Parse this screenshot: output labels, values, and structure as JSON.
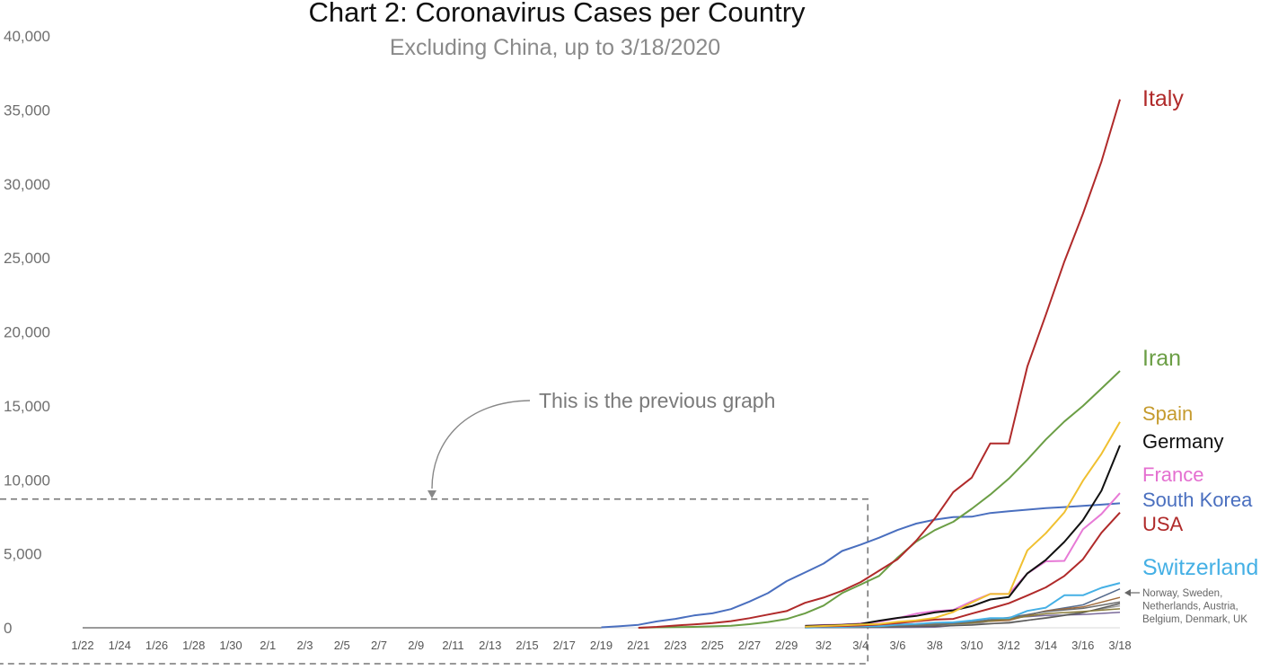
{
  "chart_data": {
    "type": "line",
    "title": "Chart 2: Coronavirus Cases per Country",
    "subtitle": "Excluding China, up to 3/18/2020",
    "xlabel": "",
    "ylabel": "",
    "ylim": [
      0,
      40000
    ],
    "y_ticks": [
      0,
      5000,
      10000,
      15000,
      20000,
      25000,
      30000,
      35000,
      40000
    ],
    "y_tick_labels": [
      "0",
      "5,000",
      "10,000",
      "15,000",
      "20,000",
      "25,000",
      "30,000",
      "35,000",
      "40,000"
    ],
    "x_tick_labels": [
      "1/22",
      "1/24",
      "1/26",
      "1/28",
      "1/30",
      "2/1",
      "2/3",
      "2/5",
      "2/7",
      "2/9",
      "2/11",
      "2/13",
      "2/15",
      "2/17",
      "2/19",
      "2/21",
      "2/23",
      "2/25",
      "2/27",
      "2/29",
      "3/2",
      "3/4",
      "3/6",
      "3/8",
      "3/10",
      "3/12",
      "3/14",
      "3/16",
      "3/18"
    ],
    "grid": false,
    "legend": "direct labels at line ends (right)",
    "series": [
      {
        "name": "Italy",
        "color": "#b02a2a",
        "label_size": "big",
        "points": [
          [
            "2/21",
            0
          ],
          [
            "2/22",
            60
          ],
          [
            "2/23",
            150
          ],
          [
            "2/24",
            230
          ],
          [
            "2/25",
            320
          ],
          [
            "2/26",
            450
          ],
          [
            "2/27",
            650
          ],
          [
            "2/28",
            890
          ],
          [
            "2/29",
            1130
          ],
          [
            "3/1",
            1690
          ],
          [
            "3/2",
            2040
          ],
          [
            "3/3",
            2500
          ],
          [
            "3/4",
            3090
          ],
          [
            "3/5",
            3860
          ],
          [
            "3/6",
            4640
          ],
          [
            "3/7",
            5880
          ],
          [
            "3/8",
            7380
          ],
          [
            "3/9",
            9170
          ],
          [
            "3/10",
            10150
          ],
          [
            "3/11",
            12460
          ],
          [
            "3/12",
            12460
          ],
          [
            "3/13",
            17660
          ],
          [
            "3/14",
            21160
          ],
          [
            "3/15",
            24750
          ],
          [
            "3/16",
            27980
          ],
          [
            "3/17",
            31510
          ],
          [
            "3/18",
            35710
          ]
        ]
      },
      {
        "name": "Iran",
        "color": "#6b9e45",
        "label_size": "big",
        "points": [
          [
            "2/21",
            0
          ],
          [
            "2/22",
            30
          ],
          [
            "2/23",
            40
          ],
          [
            "2/24",
            60
          ],
          [
            "2/25",
            100
          ],
          [
            "2/26",
            140
          ],
          [
            "2/27",
            240
          ],
          [
            "2/28",
            390
          ],
          [
            "2/29",
            590
          ],
          [
            "3/1",
            980
          ],
          [
            "3/2",
            1500
          ],
          [
            "3/3",
            2340
          ],
          [
            "3/4",
            2920
          ],
          [
            "3/5",
            3510
          ],
          [
            "3/6",
            4750
          ],
          [
            "3/7",
            5820
          ],
          [
            "3/8",
            6600
          ],
          [
            "3/9",
            7160
          ],
          [
            "3/10",
            8040
          ],
          [
            "3/11",
            9000
          ],
          [
            "3/12",
            10080
          ],
          [
            "3/13",
            11360
          ],
          [
            "3/14",
            12730
          ],
          [
            "3/15",
            13940
          ],
          [
            "3/16",
            14990
          ],
          [
            "3/17",
            16170
          ],
          [
            "3/18",
            17360
          ]
        ]
      },
      {
        "name": "Spain",
        "color": "#f0c030",
        "label_color": "#c59b2e",
        "label_size": "mid",
        "points": [
          [
            "3/1",
            80
          ],
          [
            "3/2",
            120
          ],
          [
            "3/3",
            165
          ],
          [
            "3/4",
            220
          ],
          [
            "3/5",
            260
          ],
          [
            "3/6",
            400
          ],
          [
            "3/7",
            500
          ],
          [
            "3/8",
            670
          ],
          [
            "3/9",
            1070
          ],
          [
            "3/10",
            1700
          ],
          [
            "3/11",
            2280
          ],
          [
            "3/12",
            2280
          ],
          [
            "3/13",
            5230
          ],
          [
            "3/14",
            6390
          ],
          [
            "3/15",
            7800
          ],
          [
            "3/16",
            9940
          ],
          [
            "3/17",
            11750
          ],
          [
            "3/18",
            13910
          ]
        ]
      },
      {
        "name": "Germany",
        "color": "#111111",
        "label_size": "mid",
        "points": [
          [
            "3/1",
            130
          ],
          [
            "3/2",
            160
          ],
          [
            "3/3",
            200
          ],
          [
            "3/4",
            260
          ],
          [
            "3/5",
            480
          ],
          [
            "3/6",
            670
          ],
          [
            "3/7",
            800
          ],
          [
            "3/8",
            1040
          ],
          [
            "3/9",
            1180
          ],
          [
            "3/10",
            1460
          ],
          [
            "3/11",
            1910
          ],
          [
            "3/12",
            2080
          ],
          [
            "3/13",
            3680
          ],
          [
            "3/14",
            4590
          ],
          [
            "3/15",
            5800
          ],
          [
            "3/16",
            7270
          ],
          [
            "3/17",
            9260
          ],
          [
            "3/18",
            12330
          ]
        ]
      },
      {
        "name": "France",
        "color": "#e77ad6",
        "label_color": "#e46fd0",
        "label_size": "mid",
        "points": [
          [
            "3/1",
            130
          ],
          [
            "3/2",
            190
          ],
          [
            "3/3",
            210
          ],
          [
            "3/4",
            290
          ],
          [
            "3/5",
            420
          ],
          [
            "3/6",
            650
          ],
          [
            "3/7",
            950
          ],
          [
            "3/8",
            1130
          ],
          [
            "3/9",
            1210
          ],
          [
            "3/10",
            1790
          ],
          [
            "3/11",
            2290
          ],
          [
            "3/12",
            2290
          ],
          [
            "3/13",
            3670
          ],
          [
            "3/14",
            4490
          ],
          [
            "3/15",
            4520
          ],
          [
            "3/16",
            6650
          ],
          [
            "3/17",
            7690
          ],
          [
            "3/18",
            9100
          ]
        ]
      },
      {
        "name": "South Korea",
        "color": "#4a6fbf",
        "label_size": "mid",
        "points": [
          [
            "2/19",
            30
          ],
          [
            "2/20",
            110
          ],
          [
            "2/21",
            200
          ],
          [
            "2/22",
            430
          ],
          [
            "2/23",
            600
          ],
          [
            "2/24",
            830
          ],
          [
            "2/25",
            980
          ],
          [
            "2/26",
            1260
          ],
          [
            "2/27",
            1770
          ],
          [
            "2/28",
            2340
          ],
          [
            "2/29",
            3150
          ],
          [
            "3/1",
            3740
          ],
          [
            "3/2",
            4340
          ],
          [
            "3/3",
            5190
          ],
          [
            "3/4",
            5620
          ],
          [
            "3/5",
            6090
          ],
          [
            "3/6",
            6610
          ],
          [
            "3/7",
            7040
          ],
          [
            "3/8",
            7310
          ],
          [
            "3/9",
            7480
          ],
          [
            "3/10",
            7510
          ],
          [
            "3/11",
            7760
          ],
          [
            "3/12",
            7870
          ],
          [
            "3/13",
            7980
          ],
          [
            "3/14",
            8090
          ],
          [
            "3/15",
            8160
          ],
          [
            "3/16",
            8240
          ],
          [
            "3/17",
            8320
          ],
          [
            "3/18",
            8410
          ]
        ]
      },
      {
        "name": "USA",
        "color": "#b02a2a",
        "label_size": "mid",
        "points": [
          [
            "3/1",
            80
          ],
          [
            "3/2",
            100
          ],
          [
            "3/3",
            120
          ],
          [
            "3/4",
            160
          ],
          [
            "3/5",
            220
          ],
          [
            "3/6",
            320
          ],
          [
            "3/7",
            440
          ],
          [
            "3/8",
            550
          ],
          [
            "3/9",
            600
          ],
          [
            "3/10",
            960
          ],
          [
            "3/11",
            1300
          ],
          [
            "3/12",
            1660
          ],
          [
            "3/13",
            2180
          ],
          [
            "3/14",
            2730
          ],
          [
            "3/15",
            3500
          ],
          [
            "3/16",
            4630
          ],
          [
            "3/17",
            6420
          ],
          [
            "3/18",
            7790
          ]
        ]
      },
      {
        "name": "Switzerland",
        "color": "#45b0e5",
        "label_size": "big",
        "points": [
          [
            "3/1",
            20
          ],
          [
            "3/2",
            40
          ],
          [
            "3/3",
            60
          ],
          [
            "3/4",
            90
          ],
          [
            "3/5",
            110
          ],
          [
            "3/6",
            210
          ],
          [
            "3/7",
            260
          ],
          [
            "3/8",
            340
          ],
          [
            "3/9",
            370
          ],
          [
            "3/10",
            490
          ],
          [
            "3/11",
            650
          ],
          [
            "3/12",
            650
          ],
          [
            "3/13",
            1140
          ],
          [
            "3/14",
            1360
          ],
          [
            "3/15",
            2200
          ],
          [
            "3/16",
            2200
          ],
          [
            "3/17",
            2700
          ],
          [
            "3/18",
            3030
          ]
        ]
      },
      {
        "name": "Norway",
        "color": "#6d6d6d",
        "label_size": "none",
        "points": [
          [
            "3/1",
            20
          ],
          [
            "3/5",
            90
          ],
          [
            "3/8",
            180
          ],
          [
            "3/10",
            400
          ],
          [
            "3/12",
            700
          ],
          [
            "3/14",
            1090
          ],
          [
            "3/16",
            1310
          ],
          [
            "3/18",
            1750
          ]
        ]
      },
      {
        "name": "Sweden",
        "color": "#8a7d3a",
        "label_size": "none",
        "points": [
          [
            "3/1",
            10
          ],
          [
            "3/5",
            90
          ],
          [
            "3/8",
            200
          ],
          [
            "3/10",
            330
          ],
          [
            "3/12",
            600
          ],
          [
            "3/14",
            960
          ],
          [
            "3/16",
            1100
          ],
          [
            "3/18",
            1280
          ]
        ]
      },
      {
        "name": "Netherlands",
        "color": "#a06a3a",
        "label_size": "none",
        "points": [
          [
            "3/1",
            10
          ],
          [
            "3/5",
            70
          ],
          [
            "3/8",
            260
          ],
          [
            "3/10",
            380
          ],
          [
            "3/12",
            500
          ],
          [
            "3/14",
            1140
          ],
          [
            "3/16",
            1410
          ],
          [
            "3/18",
            2050
          ]
        ]
      },
      {
        "name": "Austria",
        "color": "#5a5a5a",
        "label_size": "none",
        "points": [
          [
            "3/1",
            10
          ],
          [
            "3/5",
            40
          ],
          [
            "3/8",
            110
          ],
          [
            "3/10",
            180
          ],
          [
            "3/12",
            360
          ],
          [
            "3/14",
            650
          ],
          [
            "3/16",
            1020
          ],
          [
            "3/18",
            1640
          ]
        ]
      },
      {
        "name": "Belgium",
        "color": "#9c9c9c",
        "label_size": "none",
        "points": [
          [
            "3/1",
            5
          ],
          [
            "3/5",
            50
          ],
          [
            "3/8",
            200
          ],
          [
            "3/10",
            270
          ],
          [
            "3/12",
            310
          ],
          [
            "3/14",
            690
          ],
          [
            "3/16",
            1060
          ],
          [
            "3/18",
            1490
          ]
        ]
      },
      {
        "name": "Denmark",
        "color": "#7a6a9a",
        "label_size": "none",
        "points": [
          [
            "3/1",
            5
          ],
          [
            "3/5",
            20
          ],
          [
            "3/8",
            40
          ],
          [
            "3/10",
            260
          ],
          [
            "3/12",
            670
          ],
          [
            "3/14",
            830
          ],
          [
            "3/16",
            900
          ],
          [
            "3/18",
            1050
          ]
        ]
      },
      {
        "name": "UK",
        "color": "#556b8d",
        "label_size": "none",
        "points": [
          [
            "3/1",
            30
          ],
          [
            "3/5",
            115
          ],
          [
            "3/8",
            270
          ],
          [
            "3/10",
            380
          ],
          [
            "3/12",
            590
          ],
          [
            "3/14",
            1140
          ],
          [
            "3/16",
            1550
          ],
          [
            "3/18",
            2630
          ]
        ]
      }
    ],
    "group_label_lines": [
      "Norway, Sweden,",
      "Netherlands, Austria,",
      "Belgium, Denmark, UK"
    ],
    "annotation": {
      "text": "This is the previous graph",
      "box_x_range": [
        "1/22",
        "3/4"
      ],
      "box_top_value": 8700
    }
  }
}
